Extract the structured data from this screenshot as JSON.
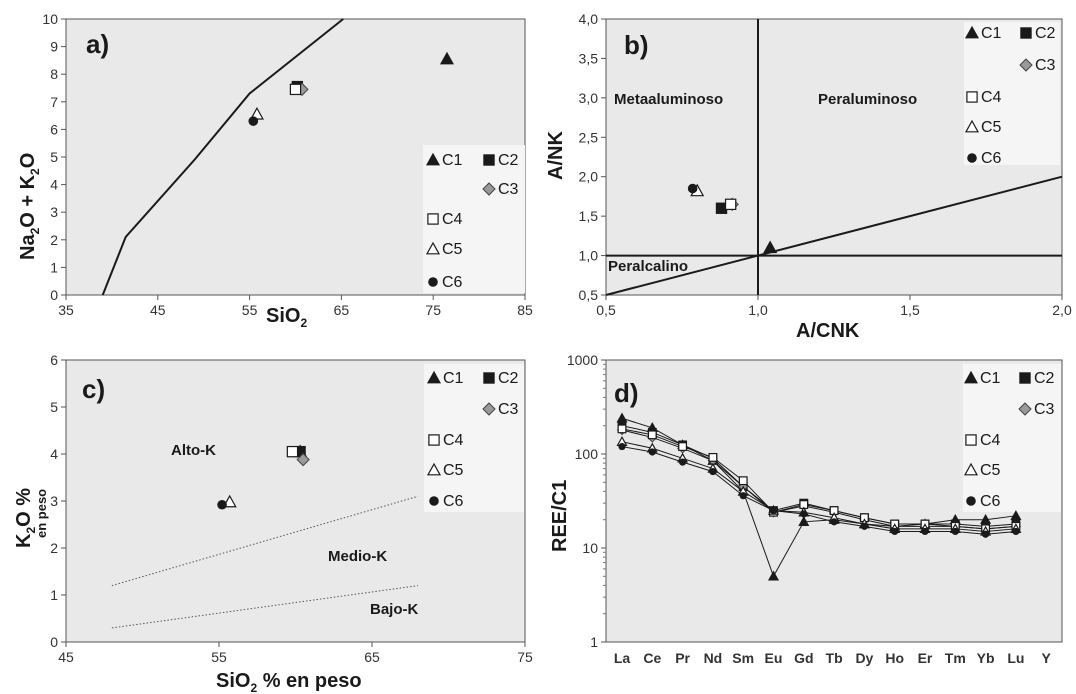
{
  "colors": {
    "plot_bg": "#e9e9e9",
    "legend_bg": "#f5f5f5",
    "ink": "#1a1a1a",
    "grey_marker": "#999999"
  },
  "legend": [
    {
      "label": "C1",
      "marker": "triangle-filled"
    },
    {
      "label": "C2",
      "marker": "square-filled"
    },
    {
      "label": "C3",
      "marker": "diamond-grey"
    },
    {
      "label": "C4",
      "marker": "square-open"
    },
    {
      "label": "C5",
      "marker": "triangle-open"
    },
    {
      "label": "C6",
      "marker": "circle-filled"
    }
  ],
  "chart_data": [
    {
      "id": "a",
      "type": "scatter",
      "panel_label": "a)",
      "xlabel": "SiO2",
      "ylabel": "Na2O + K2O",
      "xlim": [
        35,
        85
      ],
      "ylim": [
        0,
        10
      ],
      "xticks": [
        "35",
        "45",
        "55",
        "65",
        "75",
        "85"
      ],
      "yticks": [
        "0",
        "1",
        "2",
        "3",
        "4",
        "5",
        "6",
        "7",
        "8",
        "9",
        "10"
      ],
      "boundary_line": [
        [
          39,
          0
        ],
        [
          41.5,
          2.1
        ],
        [
          49,
          4.9
        ],
        [
          55,
          7.3
        ],
        [
          65.2,
          10
        ]
      ],
      "points": [
        {
          "series": "C1",
          "x": 76.5,
          "y": 8.55
        },
        {
          "series": "C2",
          "x": 60.2,
          "y": 7.55
        },
        {
          "series": "C3",
          "x": 60.7,
          "y": 7.45
        },
        {
          "series": "C4",
          "x": 60.0,
          "y": 7.45
        },
        {
          "series": "C5",
          "x": 55.8,
          "y": 6.55
        },
        {
          "series": "C6",
          "x": 55.4,
          "y": 6.3
        }
      ]
    },
    {
      "id": "b",
      "type": "scatter",
      "panel_label": "b)",
      "xlabel": "A/CNK",
      "ylabel": "A/NK",
      "xlim": [
        0.5,
        2.0
      ],
      "ylim": [
        0.5,
        4.0
      ],
      "xticks": [
        "0,5",
        "1,0",
        "1,5",
        "2,0"
      ],
      "yticks": [
        "0,5",
        "1,0",
        "1,5",
        "2,0",
        "2,5",
        "3,0",
        "3,5",
        "4,0"
      ],
      "regions": [
        "Metaaluminoso",
        "Peraluminoso",
        "Peralcalino"
      ],
      "lines": [
        [
          [
            1.0,
            0.5
          ],
          [
            1.0,
            4.0
          ]
        ],
        [
          [
            0.5,
            1.0
          ],
          [
            2.0,
            1.0
          ]
        ],
        [
          [
            0.5,
            0.5
          ],
          [
            2.0,
            2.0
          ]
        ]
      ],
      "points": [
        {
          "series": "C1",
          "x": 1.04,
          "y": 1.1
        },
        {
          "series": "C2",
          "x": 0.88,
          "y": 1.6
        },
        {
          "series": "C3",
          "x": 0.915,
          "y": 1.65
        },
        {
          "series": "C4",
          "x": 0.91,
          "y": 1.65
        },
        {
          "series": "C5",
          "x": 0.8,
          "y": 1.82
        },
        {
          "series": "C6",
          "x": 0.785,
          "y": 1.85
        }
      ]
    },
    {
      "id": "c",
      "type": "scatter",
      "panel_label": "c)",
      "xlabel": "SiO2 % en peso",
      "ylabel": "K2O % en peso",
      "xlim": [
        45,
        75
      ],
      "ylim": [
        0,
        6
      ],
      "xticks": [
        "45",
        "55",
        "65",
        "75"
      ],
      "yticks": [
        "0",
        "1",
        "2",
        "3",
        "4",
        "5",
        "6"
      ],
      "regions": [
        "Alto-K",
        "Medio-K",
        "Bajo-K"
      ],
      "dotted_lines": [
        [
          [
            48,
            1.2
          ],
          [
            68,
            3.1
          ]
        ],
        [
          [
            48,
            0.3
          ],
          [
            68,
            1.2
          ]
        ]
      ],
      "points": [
        {
          "series": "C1",
          "x": 60.3,
          "y": 4.05
        },
        {
          "series": "C2",
          "x": 60.3,
          "y": 4.05
        },
        {
          "series": "C3",
          "x": 60.5,
          "y": 3.88
        },
        {
          "series": "C4",
          "x": 59.8,
          "y": 4.05
        },
        {
          "series": "C5",
          "x": 55.7,
          "y": 2.98
        },
        {
          "series": "C6",
          "x": 55.2,
          "y": 2.92
        }
      ]
    },
    {
      "id": "d",
      "type": "line",
      "panel_label": "d)",
      "ylabel": "REE/C1",
      "yscale": "log",
      "ylim": [
        1,
        1000
      ],
      "yticks": [
        "1",
        "10",
        "100",
        "1000"
      ],
      "categories": [
        "La",
        "Ce",
        "Pr",
        "Nd",
        "Sm",
        "Eu",
        "Gd",
        "Tb",
        "Dy",
        "Ho",
        "Er",
        "Tm",
        "Yb",
        "Lu",
        "Y"
      ],
      "series": [
        {
          "name": "C1",
          "values": [
            240,
            190,
            125,
            85,
            40,
            5,
            19,
            20,
            18,
            17,
            18,
            20,
            20,
            22,
            null
          ]
        },
        {
          "name": "C2",
          "values": [
            200,
            170,
            125,
            90,
            45,
            25,
            30,
            25,
            21,
            18,
            18,
            18,
            17,
            18,
            null
          ]
        },
        {
          "name": "C3",
          "values": [
            180,
            150,
            115,
            85,
            45,
            24,
            28,
            24,
            20,
            17,
            17,
            17,
            16,
            17,
            null
          ]
        },
        {
          "name": "C4",
          "values": [
            185,
            160,
            120,
            92,
            52,
            24,
            29,
            25,
            21,
            18,
            18,
            17,
            16,
            17,
            null
          ]
        },
        {
          "name": "C5",
          "values": [
            135,
            115,
            90,
            70,
            40,
            25,
            24,
            21,
            18,
            16,
            16,
            16,
            15,
            16,
            null
          ]
        },
        {
          "name": "C6",
          "values": [
            120,
            105,
            82,
            65,
            36,
            25,
            23,
            19,
            17,
            15,
            15,
            15,
            14,
            15,
            null
          ]
        }
      ]
    }
  ]
}
